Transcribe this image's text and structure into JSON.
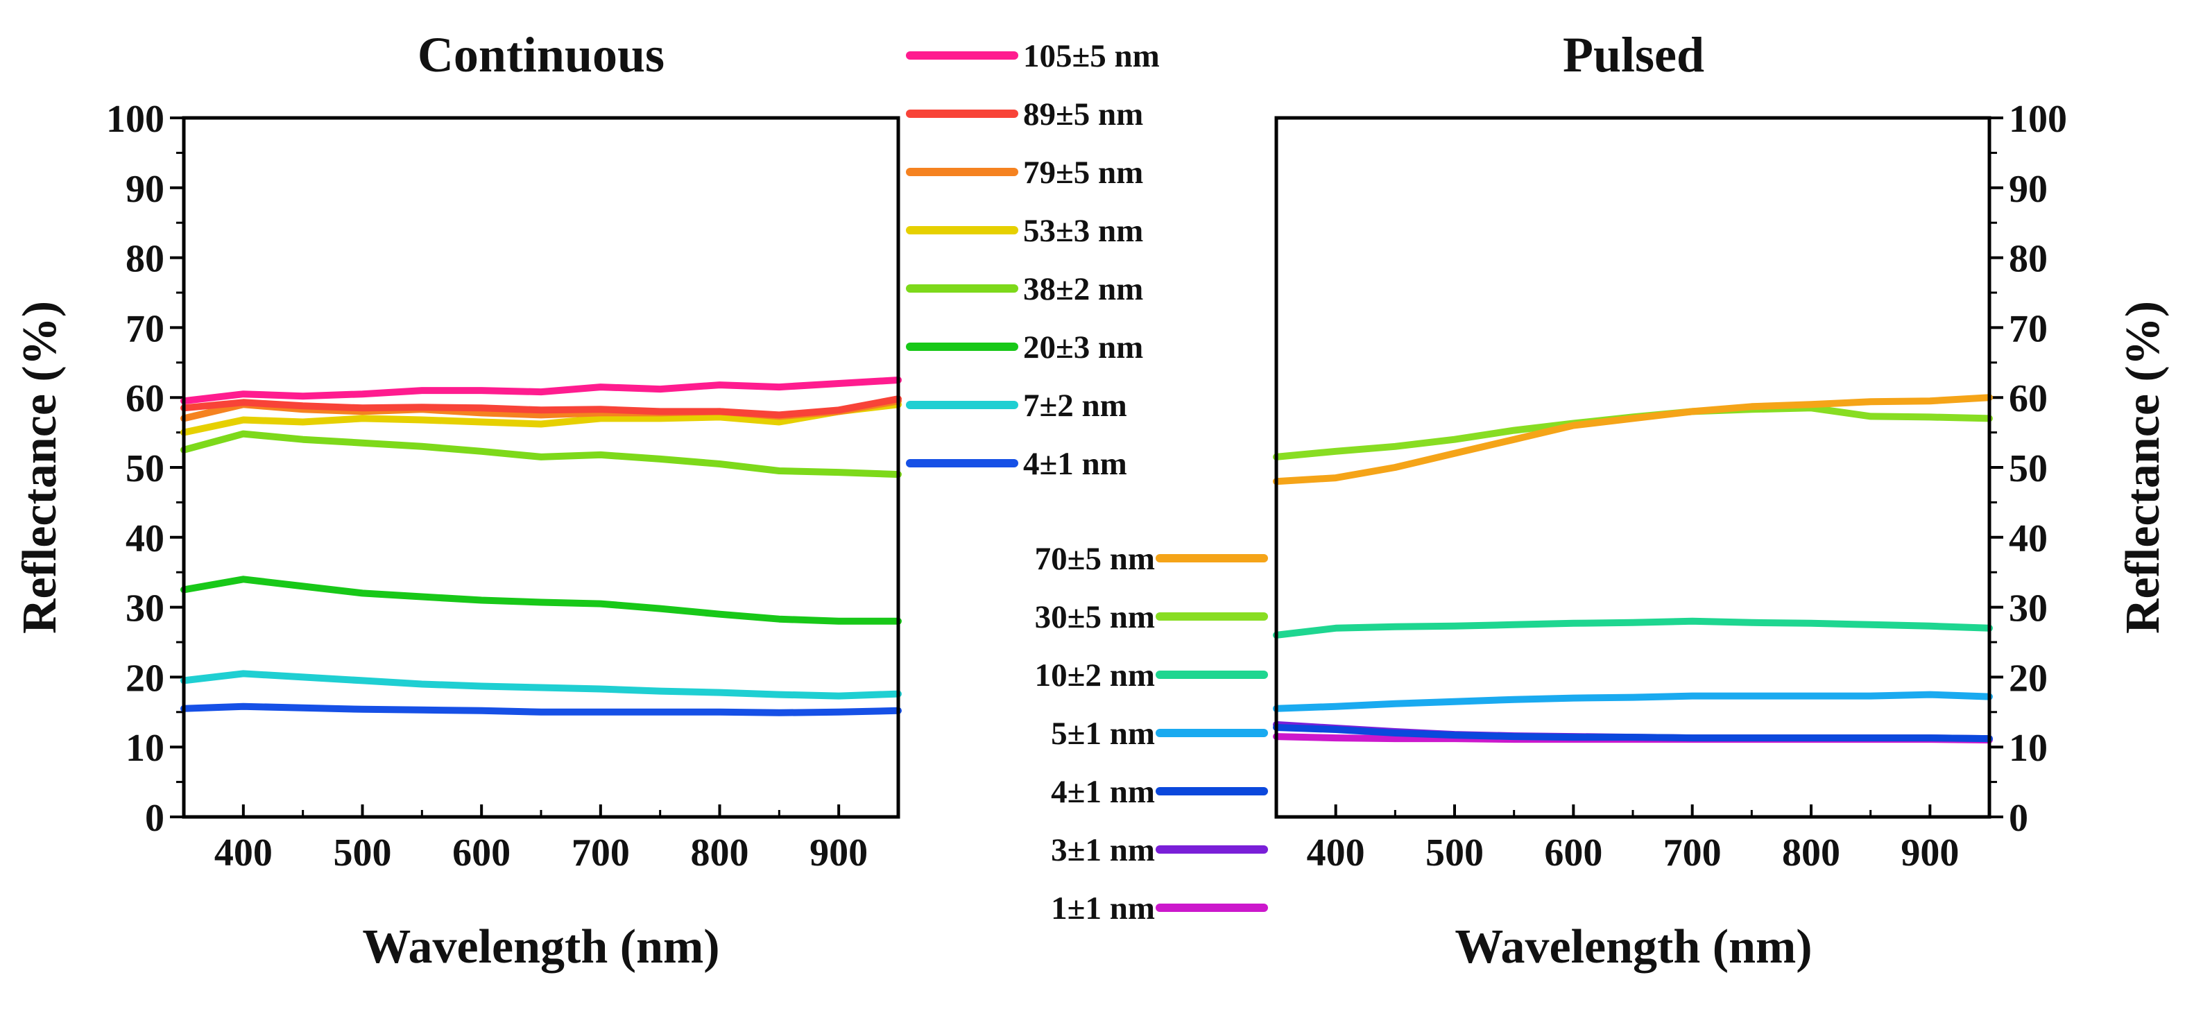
{
  "chart_data": [
    {
      "type": "line",
      "title": "Continuous",
      "xlabel": "Wavelength (nm)",
      "ylabel": "Reflectance (%)",
      "xlim": [
        350,
        950
      ],
      "ylim": [
        0,
        100
      ],
      "xticks": [
        400,
        500,
        600,
        700,
        800,
        900
      ],
      "yticks": [
        0,
        10,
        20,
        30,
        40,
        50,
        60,
        70,
        80,
        90,
        100
      ],
      "x": [
        350,
        400,
        450,
        500,
        550,
        600,
        650,
        700,
        750,
        800,
        850,
        900,
        950
      ],
      "series": [
        {
          "name": "105±5 nm",
          "color": "#ff1c8f",
          "values": [
            59.5,
            60.5,
            60.2,
            60.5,
            61.0,
            61.0,
            60.8,
            61.5,
            61.2,
            61.8,
            61.5,
            62.0,
            62.5
          ]
        },
        {
          "name": "89±5 nm",
          "color": "#f84338",
          "values": [
            58.5,
            59.3,
            58.8,
            58.5,
            58.6,
            58.5,
            58.2,
            58.3,
            58.0,
            58.0,
            57.5,
            58.2,
            59.8
          ]
        },
        {
          "name": "79±5 nm",
          "color": "#f58220",
          "values": [
            57.0,
            59.0,
            58.3,
            58.0,
            58.3,
            57.8,
            57.5,
            57.8,
            57.8,
            58.0,
            57.3,
            58.0,
            59.5
          ]
        },
        {
          "name": "53±3 nm",
          "color": "#e6d000",
          "values": [
            55.0,
            56.8,
            56.5,
            57.0,
            56.8,
            56.5,
            56.2,
            57.0,
            57.0,
            57.2,
            56.5,
            58.0,
            59.0
          ]
        },
        {
          "name": "38±2 nm",
          "color": "#7dd91a",
          "values": [
            52.5,
            54.8,
            54.0,
            53.5,
            53.0,
            52.3,
            51.5,
            51.8,
            51.2,
            50.5,
            49.5,
            49.3,
            49.0
          ]
        },
        {
          "name": "20±3 nm",
          "color": "#18c818",
          "values": [
            32.5,
            34.0,
            33.0,
            32.0,
            31.5,
            31.0,
            30.7,
            30.5,
            29.8,
            29.0,
            28.3,
            28.0,
            28.0
          ]
        },
        {
          "name": "7±2 nm",
          "color": "#1fcfd2",
          "values": [
            19.5,
            20.5,
            20.0,
            19.5,
            19.0,
            18.7,
            18.5,
            18.3,
            18.0,
            17.8,
            17.5,
            17.3,
            17.6
          ]
        },
        {
          "name": "4±1 nm",
          "color": "#1650e6",
          "values": [
            15.5,
            15.8,
            15.6,
            15.4,
            15.3,
            15.2,
            15.0,
            15.0,
            15.0,
            15.0,
            14.9,
            15.0,
            15.2
          ]
        }
      ]
    },
    {
      "type": "line",
      "title": "Pulsed",
      "xlabel": "Wavelength (nm)",
      "ylabel": "Reflectance (%)",
      "xlim": [
        350,
        950
      ],
      "ylim": [
        0,
        100
      ],
      "xticks": [
        400,
        500,
        600,
        700,
        800,
        900
      ],
      "yticks": [
        0,
        10,
        20,
        30,
        40,
        50,
        60,
        70,
        80,
        90,
        100
      ],
      "x": [
        350,
        400,
        450,
        500,
        550,
        600,
        650,
        700,
        750,
        800,
        850,
        900,
        950
      ],
      "series": [
        {
          "name": "70±5 nm",
          "color": "#f5a418",
          "values": [
            48.0,
            48.5,
            50.0,
            52.0,
            54.0,
            56.0,
            57.0,
            58.0,
            58.7,
            59.0,
            59.4,
            59.5,
            60.0
          ]
        },
        {
          "name": "30±5 nm",
          "color": "#88dd22",
          "values": [
            51.5,
            52.3,
            53.0,
            54.0,
            55.3,
            56.3,
            57.2,
            58.0,
            58.3,
            58.5,
            57.3,
            57.2,
            57.0
          ]
        },
        {
          "name": "10±2 nm",
          "color": "#1ed690",
          "values": [
            26.0,
            27.0,
            27.2,
            27.3,
            27.5,
            27.7,
            27.8,
            28.0,
            27.8,
            27.7,
            27.5,
            27.3,
            27.0
          ]
        },
        {
          "name": "5±1 nm",
          "color": "#1aaaf0",
          "values": [
            15.5,
            15.8,
            16.2,
            16.5,
            16.8,
            17.0,
            17.1,
            17.3,
            17.3,
            17.3,
            17.3,
            17.5,
            17.2
          ]
        },
        {
          "name": "4±1 nm",
          "color": "#0b48dc",
          "values": [
            12.8,
            12.5,
            12.0,
            11.7,
            11.5,
            11.4,
            11.4,
            11.3,
            11.3,
            11.3,
            11.3,
            11.3,
            11.2
          ]
        },
        {
          "name": "3±1 nm",
          "color": "#7a1fd8",
          "values": [
            13.2,
            12.7,
            12.2,
            11.8,
            11.6,
            11.5,
            11.4,
            11.3,
            11.3,
            11.3,
            11.3,
            11.3,
            11.2
          ]
        },
        {
          "name": "1±1 nm",
          "color": "#cc18cc",
          "values": [
            11.5,
            11.3,
            11.2,
            11.2,
            11.1,
            11.1,
            11.1,
            11.1,
            11.1,
            11.1,
            11.1,
            11.1,
            11.0
          ]
        }
      ]
    }
  ]
}
